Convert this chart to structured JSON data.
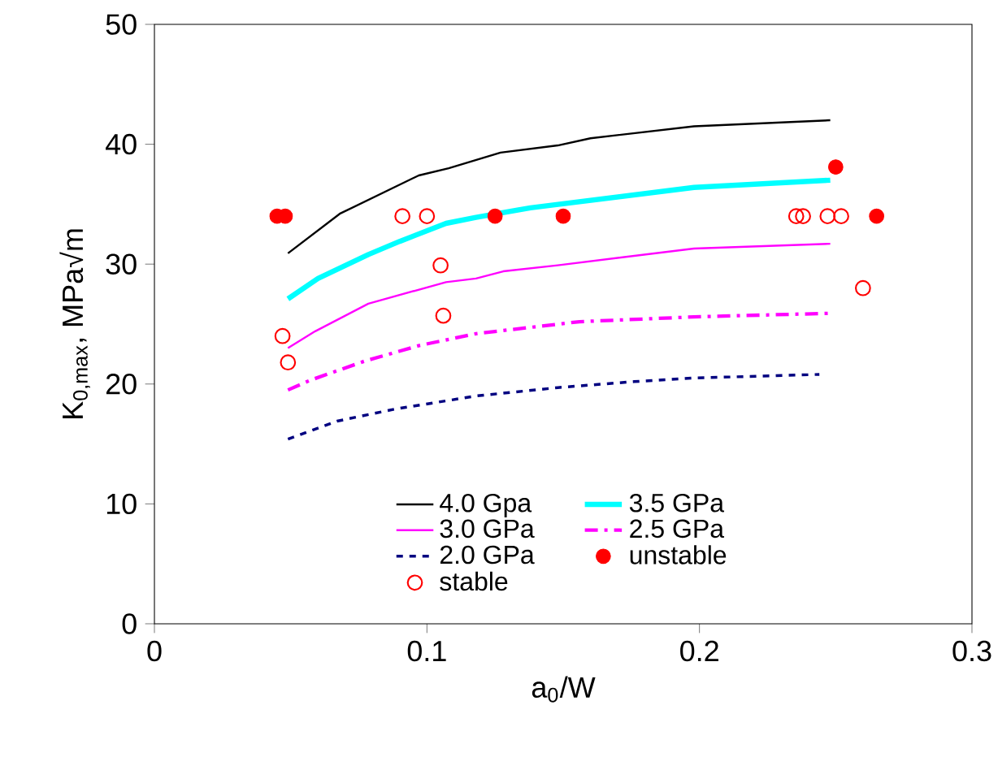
{
  "chart_data": {
    "type": "line",
    "xlabel": "a$_{0}$/W",
    "ylabel": "K$_{0,max}$, MPa√m",
    "xlim": [
      0,
      0.3
    ],
    "ylim": [
      0,
      50
    ],
    "xticks": [
      0,
      0.1,
      0.2,
      0.3
    ],
    "yticks": [
      0,
      10,
      20,
      30,
      40,
      50
    ],
    "grid": false,
    "legend": "bottom",
    "series": [
      {
        "name": "4.0 Gpa",
        "color": "#000000",
        "line_style": "solid",
        "marker": "none",
        "x": [
          0.049,
          0.068,
          0.097,
          0.108,
          0.127,
          0.148,
          0.16,
          0.198,
          0.248
        ],
        "values": [
          30.9,
          34.2,
          37.4,
          38.0,
          39.3,
          39.9,
          40.5,
          41.5,
          42.0
        ]
      },
      {
        "name": "3.5 GPa",
        "color": "#00ffff",
        "line_style": "solid",
        "marker": "none",
        "x": [
          0.049,
          0.06,
          0.0785,
          0.09,
          0.107,
          0.118,
          0.138,
          0.198,
          0.248
        ],
        "values": [
          27.1,
          28.8,
          30.8,
          31.9,
          33.4,
          33.9,
          34.7,
          36.4,
          37.0
        ]
      },
      {
        "name": "3.0 GPa",
        "color": "#ff00ff",
        "line_style": "solid",
        "marker": "none",
        "x": [
          0.049,
          0.059,
          0.0785,
          0.107,
          0.118,
          0.128,
          0.148,
          0.198,
          0.248
        ],
        "values": [
          23.0,
          24.4,
          26.7,
          28.5,
          28.8,
          29.4,
          29.9,
          31.3,
          31.7
        ]
      },
      {
        "name": "2.5 GPa",
        "color": "#ff00ff",
        "line_style": "dashdot",
        "marker": "none",
        "x": [
          0.049,
          0.057,
          0.077,
          0.097,
          0.118,
          0.156,
          0.198,
          0.248
        ],
        "values": [
          19.5,
          20.3,
          21.9,
          23.2,
          24.2,
          25.2,
          25.6,
          25.9
        ]
      },
      {
        "name": "2.0 GPa",
        "color": "#000080",
        "line_style": "dashed",
        "marker": "none",
        "x": [
          0.049,
          0.067,
          0.088,
          0.118,
          0.148,
          0.176,
          0.198,
          0.244
        ],
        "values": [
          15.4,
          16.9,
          17.9,
          19.0,
          19.7,
          20.2,
          20.5,
          20.8
        ]
      },
      {
        "name": "unstable",
        "type": "scatter",
        "color": "#ff0000",
        "marker": "circle",
        "x": [
          0.045,
          0.048,
          0.125,
          0.15,
          0.25,
          0.265
        ],
        "values": [
          34,
          34,
          34,
          34,
          38.1,
          34
        ]
      },
      {
        "name": "stable",
        "type": "scatter",
        "color": "#ff0000",
        "marker": "circle_open",
        "x": [
          0.091,
          0.1,
          0.2355,
          0.238,
          0.247,
          0.252,
          0.105,
          0.106,
          0.047,
          0.049,
          0.26
        ],
        "values": [
          34,
          34,
          34,
          34,
          34,
          34,
          29.9,
          25.7,
          24.0,
          21.8,
          28.0
        ]
      }
    ]
  }
}
